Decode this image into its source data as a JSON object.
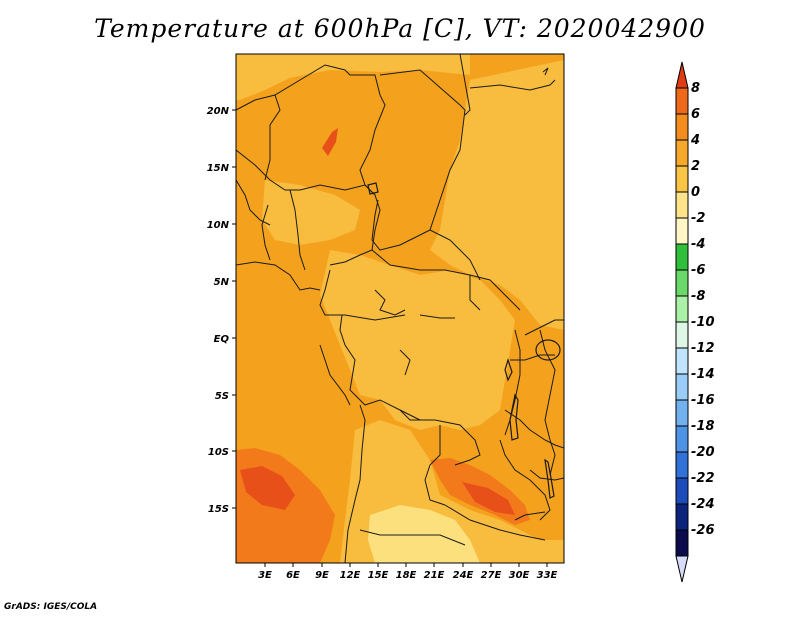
{
  "title": "Temperature at 600hPa [C], VT: 2020042900",
  "credit": "GrADS: IGES/COLA",
  "map": {
    "lon_labels": [
      "3E",
      "6E",
      "9E",
      "12E",
      "15E",
      "18E",
      "21E",
      "24E",
      "27E",
      "30E",
      "33E"
    ],
    "lat_labels": [
      "20N",
      "15N",
      "10N",
      "5N",
      "EQ",
      "5S",
      "10S",
      "15S"
    ],
    "colors": {
      "base_2_to_4": "#f4a21e",
      "light_0_to_2": "#f8bc3e",
      "pale_neg2_to_0": "#fde07e",
      "warm_4_to_6": "#f27a1a",
      "hot_6_to_8": "#e8501a",
      "border": "#1a1a1a"
    }
  },
  "colorbar": {
    "levels": [
      "8",
      "6",
      "4",
      "2",
      "0",
      "-2",
      "-4",
      "-6",
      "-8",
      "-10",
      "-12",
      "-14",
      "-16",
      "-18",
      "-20",
      "-22",
      "-24",
      "-26"
    ],
    "colors": [
      "#e03c14",
      "#ee6a1a",
      "#f48c1e",
      "#f6a82a",
      "#f9c545",
      "#fde38a",
      "#fff8c6",
      "#2fbf3a",
      "#6ad86a",
      "#aaf0a6",
      "#ddf6e6",
      "#c0e4fc",
      "#99ccf6",
      "#73b0ee",
      "#4f94e4",
      "#3272d8",
      "#1c4cba",
      "#0c247c",
      "#0a0a4c",
      "#d8dcf8"
    ]
  }
}
